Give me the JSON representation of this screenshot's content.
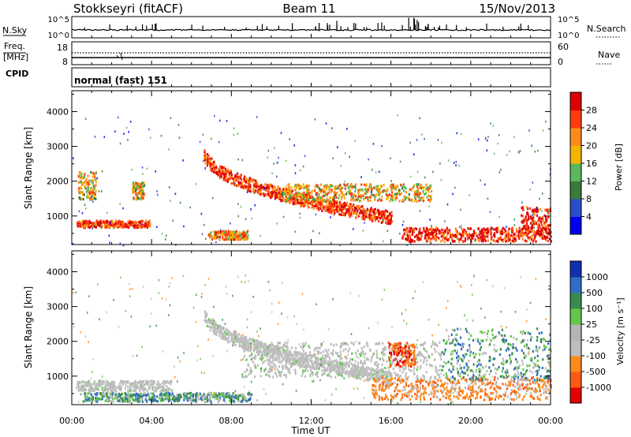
{
  "header": {
    "station": "Stokkseyri (fitACF)",
    "beam": "Beam 11",
    "date": "15/Nov/2013"
  },
  "strips": {
    "nsky_label": "N.Sky",
    "nsky_ticks": [
      "10^5",
      "10^0"
    ],
    "nsearch_label": "N.Search",
    "nsearch_ticks": [
      "10^5",
      "10^0"
    ],
    "freq_label_1": "Freq.",
    "freq_label_2": "[MHz]",
    "freq_ticks": [
      "18",
      "8"
    ],
    "nave_label": "Nave",
    "nave_ticks": [
      "60",
      "0"
    ],
    "cpid_label": "CPID",
    "cpid_value": "normal (fast) 151"
  },
  "colors": {
    "power_scale": [
      "#0000ee",
      "#2a4ec8",
      "#3a7a3a",
      "#5cb85c",
      "#f4b400",
      "#ff8c1a",
      "#ff3b0f",
      "#dd0000"
    ],
    "velocity_scale": [
      "#1030b0",
      "#2f6ec4",
      "#3a8a50",
      "#63c84a",
      "#b4b4b4",
      "#bdbdbd",
      "#ff8c1a",
      "#ff5a14",
      "#e10000"
    ]
  },
  "chart_data": [
    {
      "type": "heatmap",
      "name": "power",
      "ylabel": "Slant Range [km]",
      "xlabel": "",
      "x_ticks": [
        "00:00",
        "04:00",
        "08:00",
        "12:00",
        "16:00",
        "20:00",
        "00:00"
      ],
      "y_ticks": [
        "1000",
        "2000",
        "3000",
        "4000"
      ],
      "xlim_hours": [
        0,
        24
      ],
      "ylim_km": [
        180,
        4600
      ],
      "colorbar": {
        "label": "Power [dB]",
        "ticks": [
          "4",
          "8",
          "12",
          "16",
          "20",
          "24",
          "28"
        ],
        "range_db": [
          0,
          32
        ]
      },
      "features": [
        {
          "kind": "band",
          "t": [
            0.2,
            3.9
          ],
          "r_km": [
            700,
            900
          ],
          "level": 0.85
        },
        {
          "kind": "patch",
          "t": [
            0.3,
            1.2
          ],
          "r_km": [
            1500,
            2300
          ],
          "level": 0.55
        },
        {
          "kind": "patch",
          "t": [
            3.0,
            3.6
          ],
          "r_km": [
            1500,
            2000
          ],
          "level": 0.55
        },
        {
          "kind": "band",
          "t": [
            6.8,
            8.8
          ],
          "r_km": [
            350,
            600
          ],
          "level": 0.65
        },
        {
          "kind": "arc",
          "t": [
            6.6,
            16.0
          ],
          "r_km_start": 2800,
          "r_km_end": 900,
          "level": 0.85
        },
        {
          "kind": "band",
          "t": [
            10.5,
            18.0
          ],
          "r_km": [
            1450,
            1950
          ],
          "level": 0.6
        },
        {
          "kind": "band",
          "t": [
            16.5,
            24.0
          ],
          "r_km": [
            300,
            700
          ],
          "level": 0.9
        },
        {
          "kind": "patch",
          "t": [
            22.5,
            24.0
          ],
          "r_km": [
            500,
            1300
          ],
          "level": 0.9
        }
      ]
    },
    {
      "type": "heatmap",
      "name": "velocity",
      "xlabel": "Time UT",
      "ylabel": "Slant Range [km]",
      "x_ticks": [
        "00:00",
        "04:00",
        "08:00",
        "12:00",
        "16:00",
        "20:00",
        "00:00"
      ],
      "y_ticks": [
        "1000",
        "2000",
        "3000",
        "4000"
      ],
      "xlim_hours": [
        0,
        24
      ],
      "ylim_km": [
        180,
        4600
      ],
      "colorbar": {
        "label": "Velocity [m s⁻¹]",
        "ticks": [
          "1000",
          "500",
          "100",
          "25",
          "-25",
          "-100",
          "-500",
          "-1000"
        ]
      },
      "features": [
        {
          "kind": "band",
          "t": [
            0.2,
            5.0
          ],
          "r_km": [
            600,
            900
          ],
          "class": "ground"
        },
        {
          "kind": "arc",
          "t": [
            6.6,
            16.0
          ],
          "r_km_start": 2800,
          "r_km_end": 900,
          "class": "ground"
        },
        {
          "kind": "band",
          "t": [
            8.5,
            18.5
          ],
          "r_km": [
            1000,
            2000
          ],
          "class": "ground"
        },
        {
          "kind": "band",
          "t": [
            0.5,
            9.0
          ],
          "r_km": [
            300,
            550
          ],
          "class": "positive"
        },
        {
          "kind": "band",
          "t": [
            15.0,
            24.0
          ],
          "r_km": [
            350,
            1000
          ],
          "class": "negative"
        },
        {
          "kind": "patch",
          "t": [
            15.8,
            17.2
          ],
          "r_km": [
            1300,
            2000
          ],
          "class": "strong-negative"
        },
        {
          "kind": "patch",
          "t": [
            18.5,
            24.0
          ],
          "r_km": [
            900,
            2400
          ],
          "class": "positive"
        }
      ]
    }
  ]
}
